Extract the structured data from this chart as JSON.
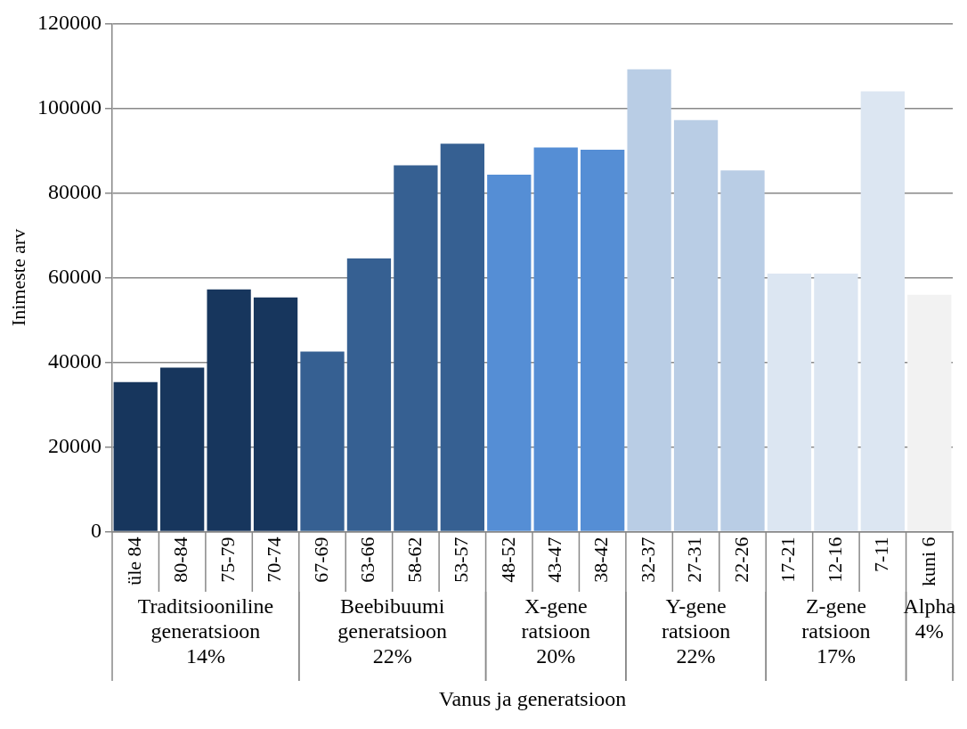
{
  "chart_data": {
    "type": "bar",
    "xlabel": "Vanus ja generatsioon",
    "ylabel": "Inimeste arv",
    "categories": [
      "üle 84",
      "80-84",
      "75-79",
      "70-74",
      "67-69",
      "63-66",
      "58-62",
      "53-57",
      "48-52",
      "43-47",
      "38-42",
      "32-37",
      "27-31",
      "22-26",
      "17-21",
      "12-16",
      "7-11",
      "kuni 6"
    ],
    "series": [
      {
        "name": "Traditsiooniline\ngeneratsioon\n14%",
        "color": "#17365d",
        "values": [
          35300,
          38700,
          57200,
          55300,
          null,
          null,
          null,
          null,
          null,
          null,
          null,
          null,
          null,
          null,
          null,
          null,
          null,
          null
        ]
      },
      {
        "name": "Beebibuumi\ngeneratsioon\n22%",
        "color": "#366092",
        "values": [
          null,
          null,
          null,
          null,
          42500,
          64500,
          86500,
          91600,
          null,
          null,
          null,
          null,
          null,
          null,
          null,
          null,
          null,
          null
        ]
      },
      {
        "name": "X-gene\nratsioon\n20%",
        "color": "#558ed5",
        "values": [
          null,
          null,
          null,
          null,
          null,
          null,
          null,
          null,
          84300,
          90700,
          90200,
          null,
          null,
          null,
          null,
          null,
          null,
          null
        ]
      },
      {
        "name": "Y-gene\nratsioon\n22%",
        "color": "#b9cde5",
        "values": [
          null,
          null,
          null,
          null,
          null,
          null,
          null,
          null,
          null,
          null,
          null,
          109200,
          97200,
          85300,
          null,
          null,
          null,
          null
        ]
      },
      {
        "name": "Z-gene\nratsioon\n17%",
        "color": "#dce6f2",
        "values": [
          null,
          null,
          null,
          null,
          null,
          null,
          null,
          null,
          null,
          null,
          null,
          null,
          null,
          null,
          60900,
          60900,
          104000,
          null
        ]
      },
      {
        "name": "Alpha\n4%",
        "color": "#f2f2f2",
        "values": [
          null,
          null,
          null,
          null,
          null,
          null,
          null,
          null,
          null,
          null,
          null,
          null,
          null,
          null,
          null,
          null,
          null,
          55900
        ]
      }
    ],
    "ylim": [
      0,
      120000
    ],
    "yticks": [
      0,
      20000,
      40000,
      60000,
      80000,
      100000,
      120000
    ],
    "grid": "y",
    "legend": false
  }
}
